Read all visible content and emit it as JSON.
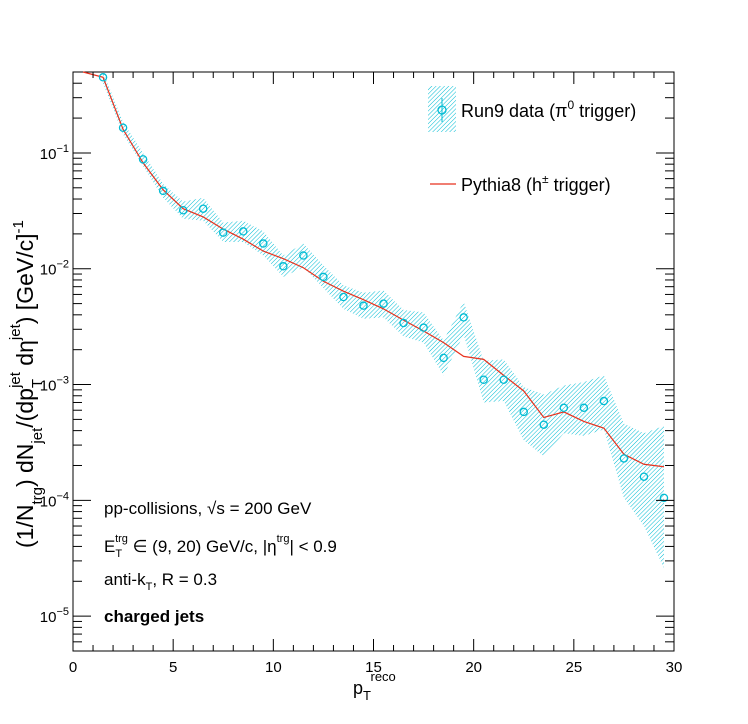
{
  "chart_data": {
    "type": "scatter",
    "x_axis": {
      "label_main": "p",
      "label_sub": "T",
      "label_sup": "reco",
      "range": [
        0,
        30
      ],
      "ticks": [
        "0",
        "5",
        "10",
        "15",
        "20",
        "25",
        "30"
      ]
    },
    "y_axis": {
      "scale": "log",
      "range": [
        5e-06,
        0.5
      ],
      "label_text": "(1/N_trg) dN_jet/(dp_T^jet dη^jet) [GeV/c]^-1",
      "label_parts": {
        "p1": "(1/N",
        "p1_sub": "trg",
        "p2": ") dN",
        "p2_sub": "jet",
        "p3": "/(dp",
        "p3_sub": "T",
        "p3_sup": "jet",
        "p4": " dη",
        "p4_sup": "jet",
        "p5": ") [GeV/c]",
        "p5_sup": "-1"
      },
      "ticks": [
        {
          "value": 0.1,
          "base": "10",
          "exp": "−1"
        },
        {
          "value": 0.01,
          "base": "10",
          "exp": "−2"
        },
        {
          "value": 0.001,
          "base": "10",
          "exp": "−3"
        },
        {
          "value": 0.0001,
          "base": "10",
          "exp": "−4"
        },
        {
          "value": 1e-05,
          "base": "10",
          "exp": "−5"
        }
      ]
    },
    "series": [
      {
        "name": "Run9 data (π0 trigger)",
        "legend": {
          "pre": "Run9 data (π",
          "sup": "0",
          "post": " trigger)"
        },
        "kind": "points_with_band",
        "color": "#00bcd4",
        "x": [
          1.5,
          2.5,
          3.5,
          4.5,
          5.5,
          6.5,
          7.5,
          8.5,
          9.5,
          10.5,
          11.5,
          12.5,
          13.5,
          14.5,
          15.5,
          16.5,
          17.5,
          18.5,
          19.5,
          20.5,
          21.5,
          22.5,
          23.5,
          24.5,
          25.5,
          26.5,
          27.5,
          28.5,
          29.5
        ],
        "y": [
          0.45,
          0.165,
          0.088,
          0.047,
          0.032,
          0.033,
          0.0205,
          0.021,
          0.0165,
          0.0105,
          0.013,
          0.0085,
          0.0057,
          0.0048,
          0.005,
          0.0034,
          0.0031,
          0.0017,
          0.0038,
          0.0011,
          0.0011,
          0.00058,
          0.00045,
          0.00063,
          0.00063,
          0.00072,
          0.00023,
          0.00016,
          0.000105
        ],
        "band_lo": [
          0.4,
          0.145,
          0.077,
          0.041,
          0.027,
          0.026,
          0.017,
          0.017,
          0.013,
          0.0085,
          0.0103,
          0.0068,
          0.0045,
          0.0037,
          0.0038,
          0.0026,
          0.0023,
          0.0012,
          0.0027,
          0.0007,
          0.00072,
          0.00033,
          0.00024,
          0.00038,
          0.00036,
          0.00041,
          0.000105,
          6e-05,
          2.6e-05
        ],
        "band_hi": [
          0.5,
          0.185,
          0.1,
          0.054,
          0.038,
          0.041,
          0.025,
          0.026,
          0.021,
          0.013,
          0.0165,
          0.0107,
          0.0072,
          0.0062,
          0.0065,
          0.0044,
          0.0042,
          0.0024,
          0.0052,
          0.0016,
          0.00165,
          0.00095,
          0.00082,
          0.00098,
          0.00105,
          0.0012,
          0.00046,
          0.00038,
          0.00044
        ]
      },
      {
        "name": "Pythia8 (h± trigger)",
        "legend": {
          "pre": "Pythia8 (h",
          "sup": "±",
          "post": " trigger)"
        },
        "kind": "line",
        "color": "#e8321e",
        "x": [
          0.5,
          1.5,
          2.5,
          3.5,
          4.5,
          5.5,
          6.5,
          7.5,
          8.5,
          9.5,
          10.5,
          11.5,
          12.5,
          13.5,
          14.5,
          15.5,
          16.5,
          17.5,
          18.5,
          19.5,
          20.5,
          21.5,
          22.5,
          23.5,
          24.5,
          25.5,
          26.5,
          27.5,
          28.5,
          29.5
        ],
        "y": [
          0.5,
          0.45,
          0.16,
          0.082,
          0.048,
          0.033,
          0.028,
          0.022,
          0.018,
          0.0142,
          0.0122,
          0.0102,
          0.0078,
          0.0064,
          0.0054,
          0.0045,
          0.0036,
          0.0029,
          0.0023,
          0.00175,
          0.00165,
          0.0012,
          0.00088,
          0.00052,
          0.00058,
          0.00048,
          0.00042,
          0.00025,
          0.000205,
          0.000195
        ]
      }
    ],
    "legend_placement": "top-right",
    "grid": false,
    "annotations": {
      "line1": {
        "pre": "pp-collisions, ",
        "root": "√",
        "s": "s",
        "post": " = 200 GeV"
      },
      "line2": {
        "e": "E",
        "e_sub": "T",
        "e_sup": "trg",
        "mid": " ∈ (9, 20) GeV/c, |η",
        "eta_sup": "trg",
        "post": "| < 0.9"
      },
      "line3": {
        "pre": "anti-k",
        "sub": "T",
        "post": ", R = 0.3"
      },
      "line4": "charged jets"
    }
  }
}
